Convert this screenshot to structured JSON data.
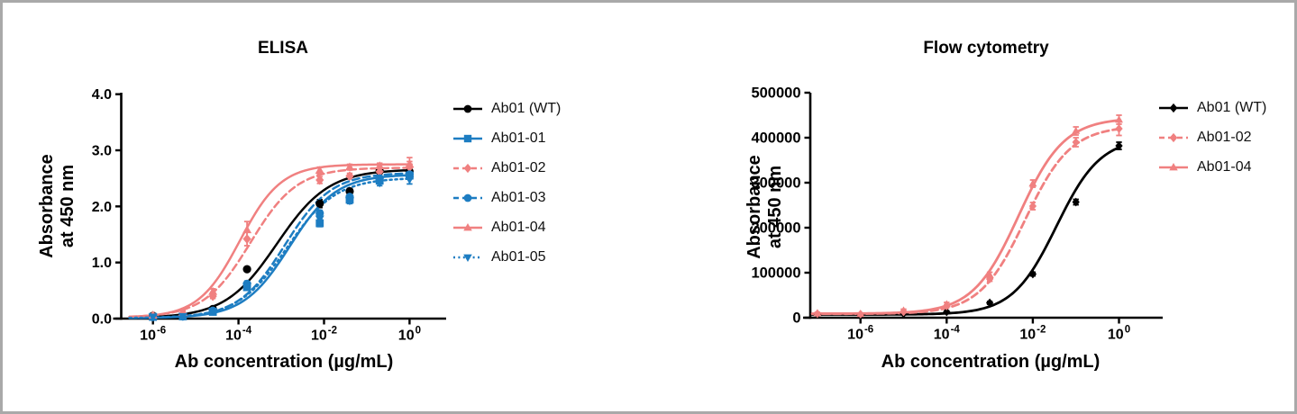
{
  "page": {
    "background": "#ffffff",
    "frame_color": "#a9a9a9",
    "black": "#000000",
    "blue": "#1d7dc2",
    "pink": "#f08080"
  },
  "chart_data": [
    {
      "type": "line",
      "title": "ELISA",
      "xlabel": "Ab concentration (µg/mL)",
      "ylabel_lines": [
        "Absorbance",
        "at 450 nm"
      ],
      "x_scale": "log10",
      "grid": false,
      "legend_position": "right",
      "ylim": [
        0,
        4.0
      ],
      "xlim_log": [
        -6.75,
        0.86
      ],
      "x_ticks": [
        {
          "base": "10",
          "exp": "-6",
          "log": -6
        },
        {
          "base": "10",
          "exp": "-4",
          "log": -4
        },
        {
          "base": "10",
          "exp": "-2",
          "log": -2
        },
        {
          "base": "10",
          "exp": "0",
          "log": 0
        }
      ],
      "y_ticks": [
        {
          "label": "0.0",
          "value": 0.0
        },
        {
          "label": "1.0",
          "value": 1.0
        },
        {
          "label": "2.0",
          "value": 2.0
        },
        {
          "label": "3.0",
          "value": 3.0
        },
        {
          "label": "4.0",
          "value": 4.0
        }
      ],
      "x_log_values": [
        -6,
        -5.3,
        -4.6,
        -3.8,
        -2.1,
        -1.4,
        -0.7,
        0
      ],
      "series": [
        {
          "name": "Ab01 (WT)",
          "color": "#000000",
          "line_style": "solid",
          "marker": "circle",
          "values": [
            0.05,
            0.05,
            0.17,
            0.88,
            2.05,
            2.27,
            2.63,
            2.62
          ],
          "errors": [
            0.02,
            0.02,
            0.03,
            0.04,
            0.07,
            0.05,
            0.04,
            0.05
          ],
          "fit": {
            "bottom": 0.01,
            "top": 2.66,
            "logEC50": -3.1,
            "hill": 0.72
          }
        },
        {
          "name": "Ab01-01",
          "color": "#1d7dc2",
          "line_style": "solid",
          "marker": "square",
          "values": [
            0.03,
            0.04,
            0.12,
            0.56,
            1.7,
            2.12,
            2.46,
            2.55
          ],
          "errors": [
            0.02,
            0.02,
            0.03,
            0.05,
            0.06,
            0.05,
            0.05,
            0.06
          ],
          "fit": {
            "bottom": 0.01,
            "top": 2.57,
            "logEC50": -2.8,
            "hill": 0.8
          }
        },
        {
          "name": "Ab01-02",
          "color": "#f08080",
          "line_style": "dashed",
          "marker": "diamond",
          "values": [
            0.05,
            0.09,
            0.4,
            1.42,
            2.47,
            2.54,
            2.62,
            2.7
          ],
          "errors": [
            0.02,
            0.02,
            0.04,
            0.12,
            0.06,
            0.05,
            0.04,
            0.1
          ],
          "fit": {
            "bottom": 0.02,
            "top": 2.69,
            "logEC50": -3.72,
            "hill": 0.8
          }
        },
        {
          "name": "Ab01-03",
          "color": "#1d7dc2",
          "line_style": "dashed",
          "marker": "circle",
          "values": [
            0.03,
            0.04,
            0.14,
            0.62,
            1.88,
            2.17,
            2.5,
            2.57
          ],
          "errors": [
            0.02,
            0.02,
            0.03,
            0.05,
            0.05,
            0.05,
            0.05,
            0.06
          ],
          "fit": {
            "bottom": 0.01,
            "top": 2.6,
            "logEC50": -2.92,
            "hill": 0.8
          }
        },
        {
          "name": "Ab01-04",
          "color": "#f08080",
          "line_style": "solid",
          "marker": "triangle-up",
          "values": [
            0.06,
            0.11,
            0.48,
            1.58,
            2.64,
            2.7,
            2.72,
            2.75
          ],
          "errors": [
            0.02,
            0.03,
            0.05,
            0.15,
            0.06,
            0.05,
            0.05,
            0.12
          ],
          "fit": {
            "bottom": 0.02,
            "top": 2.75,
            "logEC50": -3.97,
            "hill": 0.9
          }
        },
        {
          "name": "Ab01-05",
          "color": "#1d7dc2",
          "line_style": "dotted",
          "marker": "triangle-down",
          "values": [
            0.03,
            0.04,
            0.13,
            0.58,
            1.78,
            2.1,
            2.42,
            2.48
          ],
          "errors": [
            0.02,
            0.02,
            0.03,
            0.05,
            0.05,
            0.05,
            0.05,
            0.08
          ],
          "fit": {
            "bottom": 0.01,
            "top": 2.51,
            "logEC50": -2.87,
            "hill": 0.76
          }
        }
      ]
    },
    {
      "type": "line",
      "title": "Flow cytometry",
      "xlabel": "Ab concentration (µg/mL)",
      "ylabel_lines": [
        "Absorbance",
        "at 450 nm"
      ],
      "x_scale": "log10",
      "grid": false,
      "legend_position": "right",
      "ylim": [
        0,
        500000
      ],
      "xlim_log": [
        -7.2,
        1.0
      ],
      "x_ticks": [
        {
          "base": "10",
          "exp": "-6",
          "log": -6
        },
        {
          "base": "10",
          "exp": "-4",
          "log": -4
        },
        {
          "base": "10",
          "exp": "-2",
          "log": -2
        },
        {
          "base": "10",
          "exp": "0",
          "log": 0
        }
      ],
      "y_ticks": [
        {
          "label": "0",
          "value": 0
        },
        {
          "label": "100000",
          "value": 100000
        },
        {
          "label": "200000",
          "value": 200000
        },
        {
          "label": "300000",
          "value": 300000
        },
        {
          "label": "400000",
          "value": 400000
        },
        {
          "label": "500000",
          "value": 500000
        }
      ],
      "x_log_values": [
        -7,
        -6,
        -5,
        -4,
        -3,
        -2,
        -1,
        0
      ],
      "series": [
        {
          "name": "Ab01 (WT)",
          "color": "#000000",
          "line_style": "solid",
          "marker": "diamond",
          "values": [
            8000,
            7000,
            9000,
            13000,
            33000,
            97000,
            257000,
            382000
          ],
          "errors": [
            2000,
            2000,
            2000,
            2000,
            3000,
            4000,
            6000,
            8000
          ],
          "fit": {
            "bottom": 7000,
            "top": 400000,
            "logEC50": -1.45,
            "hill": 0.85
          }
        },
        {
          "name": "Ab01-02",
          "color": "#f08080",
          "line_style": "dashed",
          "marker": "diamond",
          "values": [
            9000,
            8000,
            13000,
            26000,
            86000,
            248000,
            390000,
            420000
          ],
          "errors": [
            2000,
            2000,
            3000,
            3000,
            5000,
            8000,
            10000,
            15000
          ],
          "fit": {
            "bottom": 8500,
            "top": 426000,
            "logEC50": -2.18,
            "hill": 0.82
          }
        },
        {
          "name": "Ab01-04",
          "color": "#f08080",
          "line_style": "solid",
          "marker": "triangle-up",
          "values": [
            10000,
            8000,
            16000,
            30000,
            95000,
            298000,
            415000,
            440000
          ],
          "errors": [
            2000,
            2000,
            3000,
            4000,
            6000,
            8000,
            9000,
            10000
          ],
          "fit": {
            "bottom": 9000,
            "top": 444000,
            "logEC50": -2.33,
            "hill": 0.82
          }
        }
      ]
    }
  ]
}
